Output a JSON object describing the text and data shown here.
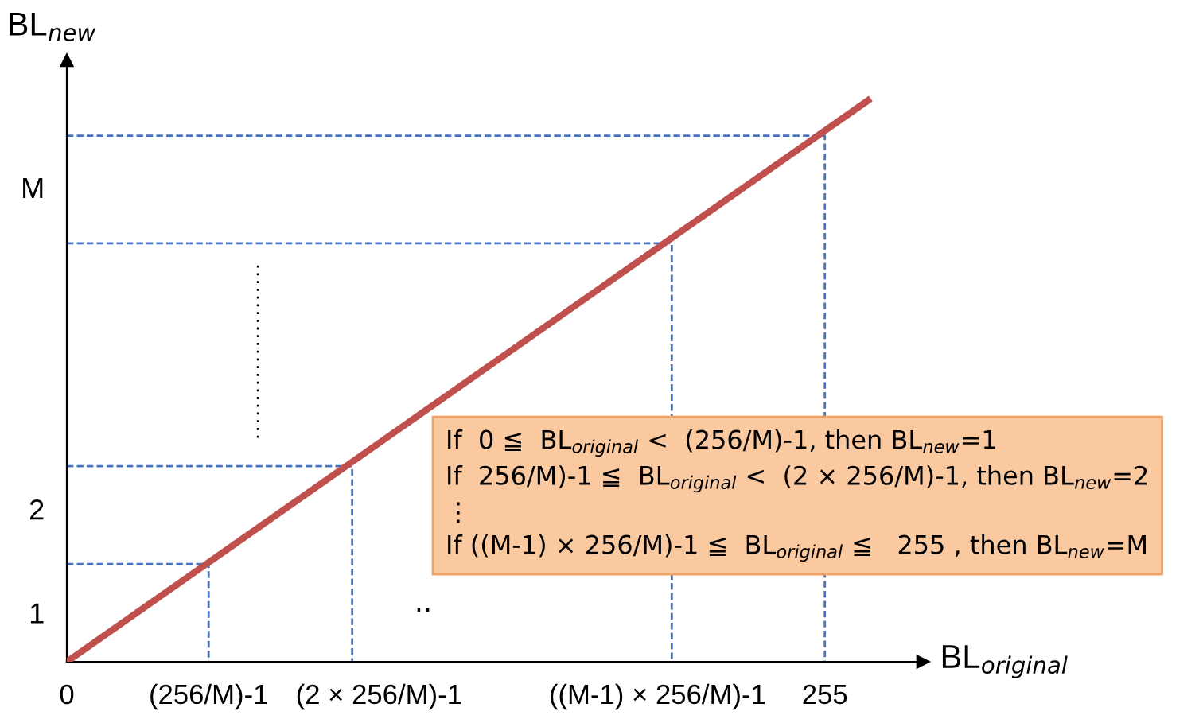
{
  "chart_data": {
    "type": "line",
    "xlabel": "BL$_{original}$",
    "ylabel": "BL$_{new}$",
    "xlim": [
      0,
      288
    ],
    "ylim": [
      0,
      6.15
    ],
    "xticks": [
      0,
      {
        "value": 47.7,
        "label": "(256/M)-1"
      },
      {
        "value": 105,
        "label": "(2 × 256/M)-1"
      },
      {
        "value": 198.7,
        "label": "((M-1) × 256/M)-1"
      },
      255
    ],
    "yticks": [
      {
        "value": 0.5,
        "label": "1"
      },
      {
        "value": 1.56,
        "label": "2"
      },
      {
        "value": 4.85,
        "label": "M"
      }
    ],
    "grid": false,
    "legend": false,
    "marker": "none",
    "series": [
      {
        "color": "#c0504d",
        "x": [
          0,
          269.5
        ],
        "values": [
          0,
          5.74
        ],
        "line_style": "solid"
      },
      {
        "color": "#4472c4",
        "x": [
          0,
          47.7,
          47.7
        ],
        "values": [
          1,
          1,
          0
        ],
        "line_style": "dashed"
      },
      {
        "color": "#4472c4",
        "x": [
          0,
          96,
          96
        ],
        "values": [
          2,
          2,
          0
        ],
        "line_style": "dashed"
      },
      {
        "color": "#4472c4",
        "x": [
          0,
          203.5,
          203.5
        ],
        "values": [
          4.28,
          4.28,
          0
        ],
        "line_style": "dashed"
      },
      {
        "color": "#4472c4",
        "x": [
          0,
          255,
          255
        ],
        "values": [
          5.38,
          5.38,
          0
        ],
        "line_style": "dashed"
      },
      {
        "color": "#000000",
        "x": [
          64.3,
          64.3
        ],
        "values": [
          2.29,
          4.08
        ],
        "line_style": "dotted"
      }
    ],
    "annotations": [
      "‥",
      "If  0 ≦  BL$_{original}$ <  (256/M)-1, then BL$_{new}$=1\nIf  256/M)-1 ≦  BL$_{original}$ <  (2 × 256/M)-1, then BL$_{new}$=2\n⋮\nIf ((M-1) × 256/M)-1 ≦  BL$_{original}$ ≦   255 , then BL$_{new}$=M"
    ]
  }
}
